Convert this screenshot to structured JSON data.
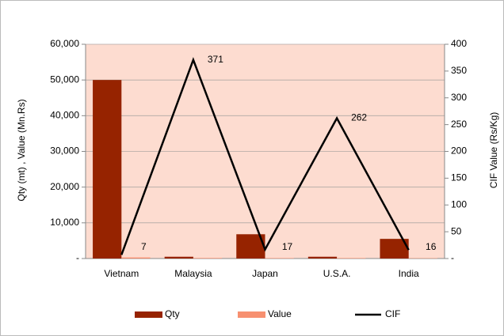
{
  "chart_data": {
    "type": "bar",
    "categories": [
      "Vietnam",
      "Malaysia",
      "Japan",
      "U.S.A.",
      "India"
    ],
    "series": [
      {
        "name": "Qty",
        "type": "bar",
        "color": "#962300",
        "values": [
          50000,
          500,
          6800,
          500,
          5500
        ]
      },
      {
        "name": "Value",
        "type": "bar",
        "color": "#f79070",
        "values": [
          300,
          150,
          120,
          130,
          90
        ]
      },
      {
        "name": "CIF",
        "type": "line",
        "axis": "y2",
        "color": "#000000",
        "values": [
          7,
          371,
          17,
          262,
          16
        ]
      }
    ],
    "y_label": "Qty  (mt) , Value (Mn.Rs)",
    "y2_label": "CIF Value (Rs/Kg)",
    "ylim": [
      0,
      60000
    ],
    "yticks": [
      {
        "value": 0,
        "label": "-"
      },
      {
        "value": 10000,
        "label": "10,000"
      },
      {
        "value": 20000,
        "label": "20,000"
      },
      {
        "value": 30000,
        "label": "30,000"
      },
      {
        "value": 40000,
        "label": "40,000"
      },
      {
        "value": 50000,
        "label": "50,000"
      },
      {
        "value": 60000,
        "label": "60,000"
      }
    ],
    "y2lim": [
      0,
      400
    ],
    "y2ticks": [
      {
        "value": 0,
        "label": "-"
      },
      50,
      100,
      150,
      200,
      250,
      300,
      350,
      400
    ],
    "grid": true,
    "legend": "bottom",
    "plot_background": "#fddcd0"
  }
}
